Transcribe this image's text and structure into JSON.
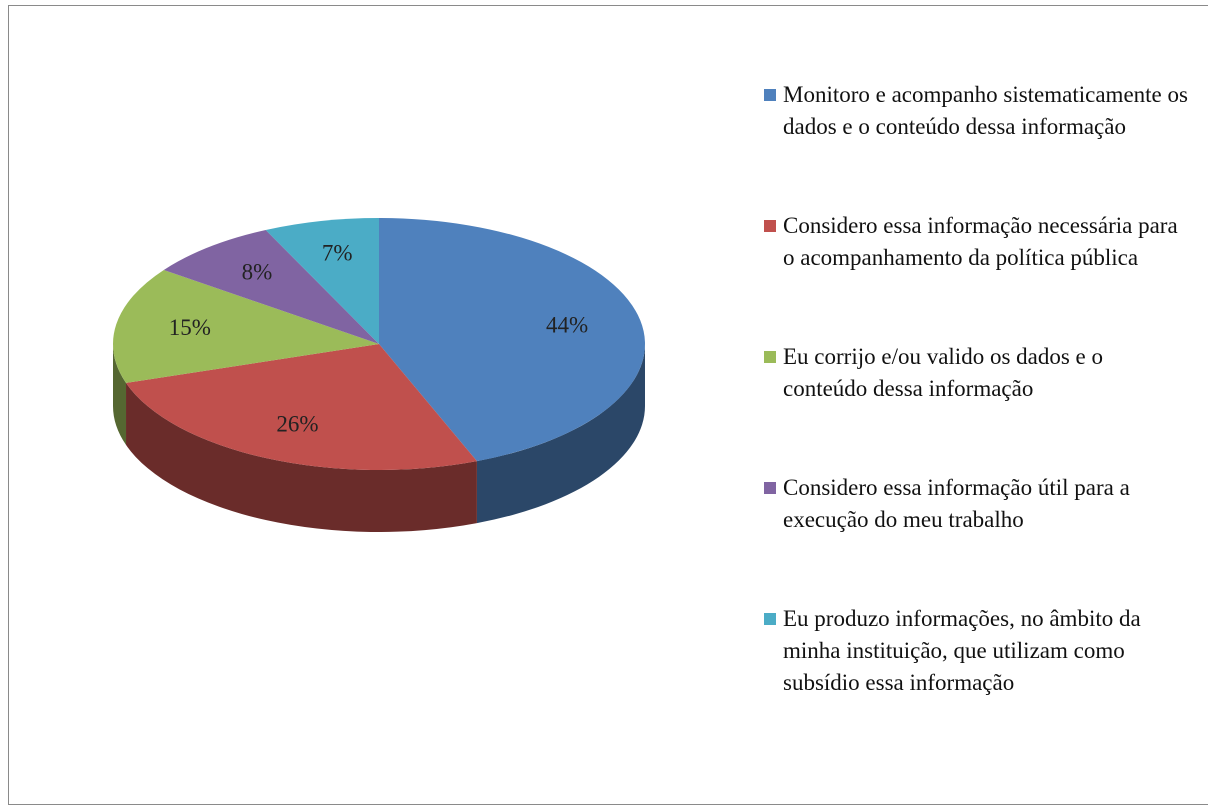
{
  "chart_data": {
    "type": "pie",
    "categories": [
      "Monitoro e acompanho sistematicamente os dados e o conteúdo dessa informação",
      "Considero essa informação necessária para o acompanhamento da política pública",
      "Eu corrijo e/ou valido os dados e o conteúdo dessa informação",
      "Considero essa informação útil para a execução do meu trabalho",
      "Eu produzo informações, no âmbito da minha instituição, que utilizam como subsídio essa informação"
    ],
    "values": [
      44,
      26,
      15,
      8,
      7
    ],
    "value_labels": [
      "44%",
      "26%",
      "15%",
      "8%",
      "7%"
    ],
    "colors": [
      "#4f81bd",
      "#c0504d",
      "#9bbb59",
      "#8064a2",
      "#4bacc6"
    ],
    "legend": "right"
  }
}
